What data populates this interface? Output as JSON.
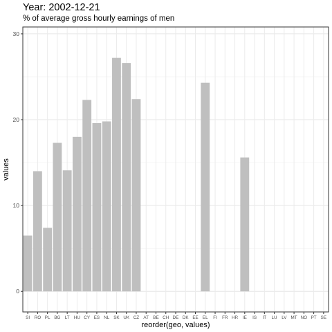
{
  "title": "Year: 2002-12-21",
  "subtitle": "% of average gross hourly earnings of men",
  "chart_data": {
    "type": "bar",
    "xlabel": "reorder(geo, values)",
    "ylabel": "values",
    "ylim": [
      -2.4,
      30.8
    ],
    "yticks": [
      0,
      10,
      20,
      30
    ],
    "grid": true,
    "bar_color": "#bfbfbf",
    "categories": [
      "SI",
      "RO",
      "PL",
      "BG",
      "LT",
      "HU",
      "CY",
      "ES",
      "NL",
      "SK",
      "UK",
      "CZ",
      "AT",
      "BE",
      "CH",
      "DE",
      "DK",
      "EE",
      "EL",
      "FI",
      "FR",
      "HR",
      "IE",
      "IS",
      "IT",
      "LU",
      "LV",
      "MT",
      "NO",
      "PT",
      "SE"
    ],
    "values": [
      6.5,
      14.0,
      7.4,
      17.3,
      14.1,
      18.0,
      22.3,
      19.6,
      19.8,
      27.2,
      26.6,
      22.4,
      null,
      null,
      null,
      null,
      null,
      null,
      24.3,
      null,
      null,
      null,
      15.6,
      null,
      null,
      null,
      null,
      null,
      null,
      null,
      null
    ]
  }
}
